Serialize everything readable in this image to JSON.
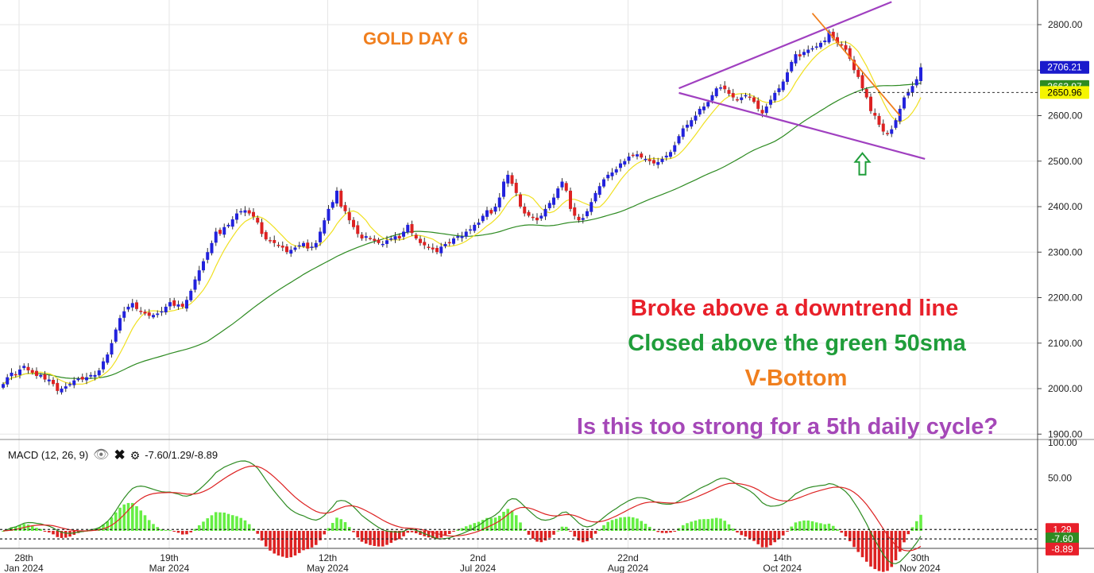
{
  "chart_title": "GOLD DAY 6",
  "annotations": [
    {
      "text": "Broke above a downtrend line",
      "color": "#e8202a"
    },
    {
      "text": "Closed above the green 50sma",
      "color": "#1f9d3a"
    },
    {
      "text": "V-Bottom",
      "color": "#f07f1e"
    },
    {
      "text": "Is this too strong for a 5th daily cycle?",
      "color": "#a548b8"
    }
  ],
  "price_labels": [
    {
      "text": "2706.21",
      "bg": "#1a1acc",
      "fg": "#ffffff"
    },
    {
      "text": "2663.97",
      "bg": "#2e8b22",
      "fg": "#ffffff"
    },
    {
      "text": "2650.96",
      "bg": "#f5f500",
      "fg": "#000000"
    }
  ],
  "macd_panel": {
    "label": "MACD (12, 26, 9)",
    "values_text": "-7.60/1.29/-8.89",
    "eye_icon": "eye-icon",
    "close_icon": "close-icon",
    "settings_icon": "gear-icon",
    "value_labels": [
      {
        "text": "1.29",
        "bg": "#e8202a",
        "fg": "#ffffff"
      },
      {
        "text": "-7.60",
        "bg": "#2e8b22",
        "fg": "#ffffff"
      },
      {
        "text": "-8.89",
        "bg": "#e8202a",
        "fg": "#ffffff"
      }
    ]
  },
  "colors": {
    "up_candle": "#2222dd",
    "down_candle": "#dd2222",
    "sma_fast": "#f0e020",
    "sma_50": "#2e8b22",
    "channel": "#a040c0",
    "downtrend": "#f07f1e",
    "macd_line": "#2e8b22",
    "signal_line": "#dd2222",
    "hist_pos": "#66ee44",
    "hist_neg": "#dd2222",
    "grid": "#e6e6e6",
    "arrow": "#1f9d3a"
  },
  "chart_data": {
    "type": "candlestick",
    "instrument": "GOLD",
    "timeframe": "daily",
    "price_axis": {
      "ylim": [
        1880,
        2850
      ],
      "ticks": [
        "1900.00",
        "2000.00",
        "2100.00",
        "2200.00",
        "2300.00",
        "2400.00",
        "2500.00",
        "2600.00",
        "2700.00",
        "2800.00"
      ]
    },
    "macd_axis": {
      "ylim": [
        -40,
        100
      ],
      "ticks": [
        "50.00",
        "100.00"
      ]
    },
    "date_axis": [
      {
        "day": "28th",
        "month": "Jan 2024",
        "idx": 0
      },
      {
        "day": "19th",
        "month": "Mar 2024",
        "idx": 36
      },
      {
        "day": "12th",
        "month": "May 2024",
        "idx": 74
      },
      {
        "day": "2nd",
        "month": "Jul 2024",
        "idx": 110
      },
      {
        "day": "22nd",
        "month": "Aug 2024",
        "idx": 146
      },
      {
        "day": "14th",
        "month": "Oct 2024",
        "idx": 183
      },
      {
        "day": "30th",
        "month": "Nov 2024",
        "idx": 216
      }
    ],
    "last_close": 2706.21,
    "sma_50_last": 2663.97,
    "sma_fast_last": 2650.96,
    "macd": {
      "macd": -7.6,
      "signal": 1.29,
      "histogram": -8.89
    },
    "channel_upper": [
      {
        "idx": 162,
        "price": 2660
      },
      {
        "idx": 213,
        "price": 2850
      }
    ],
    "channel_lower": [
      {
        "idx": 162,
        "price": 2650
      },
      {
        "idx": 221,
        "price": 2505
      }
    ],
    "downtrend_line": [
      {
        "idx": 194,
        "price": 2825
      },
      {
        "idx": 215,
        "price": 2600
      }
    ],
    "v_bottom_arrow": {
      "idx": 206,
      "price": 2500
    },
    "close_series": [
      2010,
      2025,
      2035,
      2030,
      2042,
      2050,
      2040,
      2035,
      2028,
      2030,
      2020,
      2020,
      2010,
      1995,
      2000,
      2005,
      2010,
      2018,
      2022,
      2020,
      2025,
      2030,
      2030,
      2040,
      2060,
      2075,
      2100,
      2130,
      2155,
      2170,
      2180,
      2188,
      2175,
      2170,
      2165,
      2160,
      2162,
      2165,
      2170,
      2180,
      2190,
      2182,
      2185,
      2180,
      2195,
      2215,
      2240,
      2260,
      2280,
      2300,
      2320,
      2345,
      2340,
      2355,
      2360,
      2372,
      2385,
      2390,
      2392,
      2385,
      2378,
      2365,
      2340,
      2328,
      2325,
      2320,
      2315,
      2310,
      2300,
      2305,
      2310,
      2315,
      2320,
      2308,
      2312,
      2320,
      2345,
      2370,
      2395,
      2410,
      2435,
      2400,
      2390,
      2370,
      2355,
      2340,
      2330,
      2335,
      2330,
      2325,
      2320,
      2318,
      2326,
      2330,
      2335,
      2330,
      2345,
      2360,
      2342,
      2330,
      2320,
      2315,
      2310,
      2306,
      2300,
      2312,
      2318,
      2320,
      2330,
      2335,
      2335,
      2345,
      2350,
      2360,
      2365,
      2380,
      2392,
      2385,
      2400,
      2420,
      2455,
      2470,
      2450,
      2430,
      2400,
      2385,
      2380,
      2375,
      2370,
      2380,
      2395,
      2408,
      2420,
      2440,
      2455,
      2435,
      2395,
      2380,
      2370,
      2375,
      2390,
      2410,
      2430,
      2445,
      2460,
      2470,
      2475,
      2482,
      2495,
      2500,
      2510,
      2512,
      2515,
      2508,
      2505,
      2500,
      2495,
      2498,
      2505,
      2512,
      2520,
      2535,
      2555,
      2572,
      2580,
      2590,
      2600,
      2615,
      2620,
      2630,
      2645,
      2660,
      2662,
      2658,
      2648,
      2640,
      2635,
      2640,
      2645,
      2640,
      2630,
      2615,
      2605,
      2620,
      2635,
      2650,
      2660,
      2675,
      2695,
      2718,
      2735,
      2730,
      2740,
      2745,
      2748,
      2752,
      2760,
      2765,
      2785,
      2770,
      2760,
      2755,
      2745,
      2725,
      2700,
      2685,
      2660,
      2640,
      2610,
      2600,
      2580,
      2565,
      2560,
      2570,
      2590,
      2615,
      2640,
      2652,
      2665,
      2680,
      2706.21
    ]
  }
}
